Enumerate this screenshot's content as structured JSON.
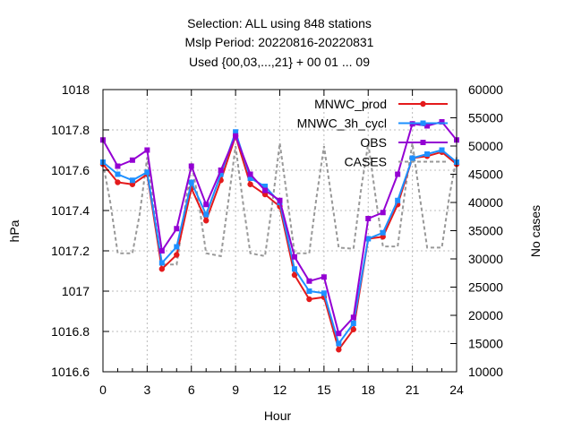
{
  "chart_data": {
    "type": "line",
    "title_lines": [
      "Selection: ALL using   848 stations",
      "Mslp   Period: 20220816-20220831",
      "Used {00,03,...,21} + 00 01 ... 09"
    ],
    "xlabel": "Hour",
    "ylabel": "hPa",
    "y2label": "No cases",
    "xlim": [
      0,
      24
    ],
    "ylim": [
      1016.6,
      1018
    ],
    "y2lim": [
      10000,
      60000
    ],
    "xticks": [
      "0",
      "3",
      "6",
      "9",
      "12",
      "15",
      "18",
      "21",
      "24"
    ],
    "yticks": [
      "1016.6",
      "1016.8",
      "1017",
      "1017.2",
      "1017.4",
      "1017.6",
      "1017.8",
      "1018"
    ],
    "y2ticks": [
      "10000",
      "15000",
      "20000",
      "25000",
      "30000",
      "35000",
      "40000",
      "45000",
      "50000",
      "55000",
      "60000"
    ],
    "grid": true,
    "legend_position": "top-right",
    "x": [
      0,
      1,
      2,
      3,
      4,
      5,
      6,
      7,
      8,
      9,
      10,
      11,
      12,
      13,
      14,
      15,
      16,
      17,
      18,
      19,
      20,
      21,
      22,
      23,
      24
    ],
    "series": [
      {
        "name": "MNWC_prod",
        "color": "#e41a1c",
        "marker": "filled-circle",
        "axis": "y",
        "values": [
          1017.63,
          1017.54,
          1017.53,
          1017.58,
          1017.11,
          1017.18,
          1017.51,
          1017.35,
          1017.55,
          1017.77,
          1017.53,
          1017.48,
          1017.42,
          1017.08,
          1016.96,
          1016.97,
          1016.71,
          1016.81,
          1017.26,
          1017.27,
          1017.43,
          1017.66,
          1017.67,
          1017.69,
          1017.63
        ]
      },
      {
        "name": "MNWC_3h_cycl",
        "color": "#1e90ff",
        "marker": "filled-square",
        "axis": "y",
        "values": [
          1017.64,
          1017.58,
          1017.55,
          1017.59,
          1017.14,
          1017.22,
          1017.54,
          1017.38,
          1017.58,
          1017.79,
          1017.56,
          1017.52,
          1017.44,
          1017.11,
          1017.0,
          1016.99,
          1016.74,
          1016.84,
          1017.26,
          1017.29,
          1017.45,
          1017.66,
          1017.68,
          1017.7,
          1017.64
        ]
      },
      {
        "name": "OBS",
        "color": "#9400d3",
        "marker": "filled-square",
        "axis": "y",
        "values": [
          1017.75,
          1017.62,
          1017.65,
          1017.7,
          1017.2,
          1017.31,
          1017.62,
          1017.43,
          1017.6,
          1017.77,
          1017.58,
          1017.5,
          1017.45,
          1017.17,
          1017.05,
          1017.07,
          1016.79,
          1016.87,
          1017.36,
          1017.39,
          1017.58,
          1017.83,
          1017.82,
          1017.84,
          1017.75
        ]
      },
      {
        "name": "CASES",
        "color": "#999999",
        "dash": true,
        "axis": "y2",
        "x": [
          0,
          0.5,
          1,
          2,
          2.5,
          3,
          3.5,
          4,
          5,
          6,
          6.5,
          7,
          8,
          8.5,
          9,
          9.5,
          10,
          11,
          11.5,
          12,
          12.5,
          13,
          14,
          14.5,
          15,
          15.5,
          16,
          17,
          17.5,
          18,
          18.5,
          19,
          20,
          20.5,
          21,
          21.5,
          22,
          23,
          23.5,
          24
        ],
        "values": [
          47000,
          40000,
          31000,
          31000,
          38000,
          48000,
          38000,
          29000,
          29000,
          47000,
          40000,
          31000,
          30500,
          40000,
          50000,
          40000,
          31000,
          30500,
          40000,
          50500,
          41000,
          31000,
          31000,
          41000,
          50000,
          41000,
          32000,
          31800,
          42000,
          50500,
          41000,
          32200,
          32200,
          42000,
          50500,
          41000,
          32000,
          32000,
          41000,
          48000
        ]
      }
    ]
  }
}
